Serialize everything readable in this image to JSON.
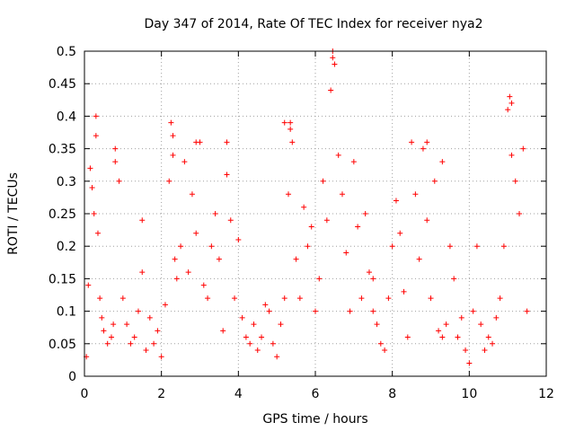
{
  "chart_data": {
    "type": "scatter",
    "title": "Day 347 of 2014, Rate Of TEC Index for receiver nya2",
    "xlabel": "GPS time / hours",
    "ylabel": "ROTI / TECUs",
    "xlim": [
      0,
      12
    ],
    "ylim": [
      0,
      0.5
    ],
    "xticks": [
      0,
      2,
      4,
      6,
      8,
      10,
      12
    ],
    "xtick_labels": [
      "0",
      "2",
      "4",
      "6",
      "8",
      "10",
      "12"
    ],
    "yticks": [
      0,
      0.05,
      0.1,
      0.15,
      0.2,
      0.25,
      0.3,
      0.35,
      0.4,
      0.45,
      0.5
    ],
    "ytick_labels": [
      "0",
      "0.05",
      "0.1",
      "0.15",
      "0.2",
      "0.25",
      "0.3",
      "0.35",
      "0.4",
      "0.45",
      "0.5"
    ],
    "grid": true,
    "marker": "+",
    "series": [
      {
        "name": "nya2",
        "color": "#ff0000",
        "x": [
          0.05,
          0.1,
          0.15,
          0.2,
          0.25,
          0.3,
          0.35,
          0.4,
          0.45,
          0.5,
          0.6,
          0.7,
          0.75,
          0.8,
          0.9,
          1.0,
          1.1,
          1.2,
          1.3,
          1.4,
          1.5,
          1.6,
          1.7,
          1.8,
          1.9,
          2.0,
          2.1,
          2.2,
          2.25,
          2.3,
          2.35,
          2.4,
          2.5,
          2.6,
          2.7,
          2.8,
          2.9,
          3.0,
          3.1,
          3.2,
          3.3,
          3.4,
          3.5,
          3.6,
          3.7,
          3.8,
          3.9,
          4.0,
          4.1,
          4.2,
          4.3,
          4.4,
          4.5,
          4.6,
          4.7,
          4.8,
          4.9,
          5.0,
          5.1,
          5.2,
          5.3,
          5.35,
          5.4,
          5.5,
          5.6,
          5.7,
          5.8,
          5.9,
          6.0,
          6.1,
          6.2,
          6.3,
          6.4,
          6.45,
          6.5,
          6.6,
          6.7,
          6.8,
          6.9,
          7.0,
          7.1,
          7.2,
          7.3,
          7.4,
          7.5,
          7.6,
          7.7,
          7.8,
          7.9,
          8.0,
          8.1,
          8.2,
          8.3,
          8.4,
          8.5,
          8.6,
          8.7,
          8.8,
          8.9,
          9.0,
          9.1,
          9.2,
          9.3,
          9.4,
          9.5,
          9.6,
          9.7,
          9.8,
          9.9,
          10.0,
          10.1,
          10.2,
          10.3,
          10.4,
          10.5,
          10.6,
          10.7,
          10.8,
          10.9,
          11.0,
          11.05,
          11.1,
          11.2,
          11.3,
          11.4,
          11.5,
          0.3,
          0.8,
          2.3,
          2.9,
          5.2,
          6.45,
          11.1,
          1.5,
          3.7,
          5.35,
          7.5,
          8.9,
          9.3
        ],
        "y": [
          0.03,
          0.14,
          0.32,
          0.29,
          0.25,
          0.4,
          0.22,
          0.12,
          0.09,
          0.07,
          0.05,
          0.06,
          0.08,
          0.35,
          0.3,
          0.12,
          0.08,
          0.05,
          0.06,
          0.1,
          0.24,
          0.04,
          0.09,
          0.05,
          0.07,
          0.03,
          0.11,
          0.3,
          0.39,
          0.34,
          0.18,
          0.15,
          0.2,
          0.33,
          0.16,
          0.28,
          0.22,
          0.36,
          0.14,
          0.12,
          0.2,
          0.25,
          0.18,
          0.07,
          0.36,
          0.24,
          0.12,
          0.21,
          0.09,
          0.06,
          0.05,
          0.08,
          0.04,
          0.06,
          0.11,
          0.1,
          0.05,
          0.03,
          0.08,
          0.12,
          0.28,
          0.39,
          0.36,
          0.18,
          0.12,
          0.26,
          0.2,
          0.23,
          0.1,
          0.15,
          0.3,
          0.24,
          0.44,
          0.5,
          0.48,
          0.34,
          0.28,
          0.19,
          0.1,
          0.33,
          0.23,
          0.12,
          0.25,
          0.16,
          0.1,
          0.08,
          0.05,
          0.04,
          0.12,
          0.2,
          0.27,
          0.22,
          0.13,
          0.06,
          0.36,
          0.28,
          0.18,
          0.35,
          0.24,
          0.12,
          0.3,
          0.07,
          0.06,
          0.08,
          0.2,
          0.15,
          0.06,
          0.09,
          0.04,
          0.02,
          0.1,
          0.2,
          0.08,
          0.04,
          0.06,
          0.05,
          0.09,
          0.12,
          0.2,
          0.41,
          0.43,
          0.34,
          0.3,
          0.25,
          0.35,
          0.1,
          0.37,
          0.33,
          0.37,
          0.36,
          0.39,
          0.49,
          0.42,
          0.16,
          0.31,
          0.38,
          0.15,
          0.36,
          0.33
        ]
      }
    ]
  }
}
